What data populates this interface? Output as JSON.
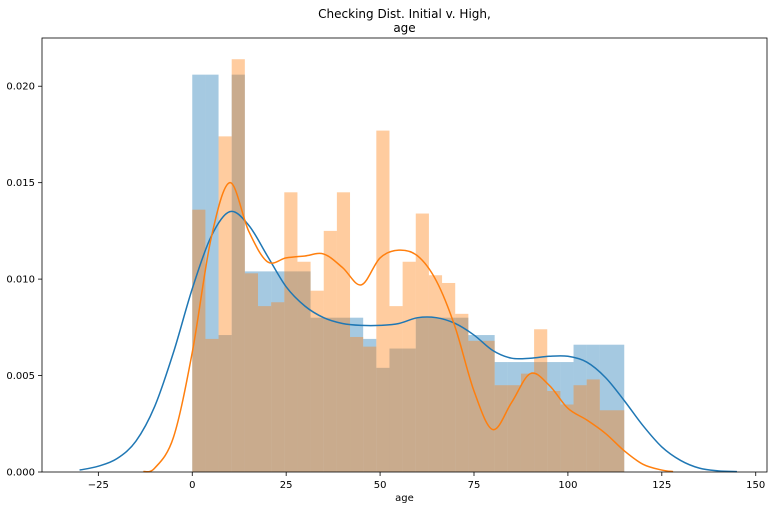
{
  "chart_data": {
    "type": "histogram",
    "title_lines": [
      "Checking Dist. Initial v. High,",
      "age"
    ],
    "xlabel": "age",
    "ylabel": "",
    "xlim": [
      -40,
      153
    ],
    "ylim": [
      0,
      0.0225
    ],
    "x_ticks": [
      -25,
      0,
      25,
      50,
      75,
      100,
      125,
      150
    ],
    "y_ticks": [
      0.0,
      0.005,
      0.01,
      0.015,
      0.02
    ],
    "y_tick_labels": [
      "0.000",
      "0.005",
      "0.010",
      "0.015",
      "0.020"
    ],
    "grid": false,
    "legend": "none",
    "colors": {
      "blue": "#1f77b4",
      "orange": "#ff7f0e",
      "blue_fill": "#1f77b4",
      "orange_fill": "#ff7f0e"
    },
    "series": [
      {
        "color": "blue",
        "bin_edges": [
          0,
          3.5,
          7,
          10.5,
          14,
          17.5,
          21,
          24.5,
          28,
          31.5,
          35,
          38.5,
          42,
          45.5,
          49,
          52.5,
          56,
          59.5,
          63,
          66.5,
          70,
          73.5,
          77,
          80.5,
          84,
          87.5,
          91,
          94.5,
          98,
          101.5,
          105,
          108.5,
          115
        ],
        "heights": [
          0.0206,
          0.0206,
          0.0071,
          0.0206,
          0.0104,
          0.0104,
          0.0104,
          0.0104,
          0.0104,
          0.008,
          0.008,
          0.008,
          0.008,
          0.0069,
          0.0054,
          0.0064,
          0.0064,
          0.008,
          0.008,
          0.008,
          0.008,
          0.0071,
          0.0071,
          0.0057,
          0.0057,
          0.0057,
          0.0057,
          0.0057,
          0.0057,
          0.0066,
          0.0066,
          0.0066,
          0.0066
        ],
        "kde_x": [
          -30,
          -25,
          -20,
          -15,
          -10,
          -5,
          0,
          5,
          10,
          15,
          20,
          25,
          30,
          35,
          40,
          45,
          50,
          55,
          60,
          65,
          70,
          75,
          80,
          85,
          90,
          95,
          100,
          105,
          110,
          115,
          120,
          125,
          130,
          135,
          140,
          145
        ],
        "kde_y": [
          0.0001,
          0.0003,
          0.0007,
          0.0016,
          0.0034,
          0.0062,
          0.0095,
          0.0122,
          0.0135,
          0.0128,
          0.0112,
          0.0096,
          0.0086,
          0.008,
          0.0077,
          0.0076,
          0.0076,
          0.0077,
          0.008,
          0.008,
          0.0077,
          0.0071,
          0.0063,
          0.0059,
          0.0059,
          0.006,
          0.006,
          0.0057,
          0.0049,
          0.0037,
          0.0024,
          0.0013,
          0.0006,
          0.0002,
          6e-05,
          2e-05
        ]
      },
      {
        "color": "orange",
        "bin_edges": [
          0,
          3.5,
          7,
          10.5,
          14,
          17.5,
          21,
          24.5,
          28,
          31.5,
          35,
          38.5,
          42,
          45.5,
          49,
          52.5,
          56,
          59.5,
          63,
          66.5,
          70,
          73.5,
          77,
          80.5,
          84,
          87.5,
          91,
          94.5,
          98,
          101.5,
          105,
          108.5,
          115
        ],
        "heights": [
          0.0136,
          0.0069,
          0.0174,
          0.0214,
          0.0103,
          0.0086,
          0.0088,
          0.0145,
          0.0109,
          0.0094,
          0.0125,
          0.0145,
          0.007,
          0.0065,
          0.0177,
          0.0086,
          0.0109,
          0.0134,
          0.0102,
          0.0098,
          0.0082,
          0.0068,
          0.0068,
          0.0045,
          0.0045,
          0.0051,
          0.0074,
          0.0042,
          0.0035,
          0.0045,
          0.0048,
          0.0032,
          0.0026
        ],
        "kde_x": [
          -13,
          -10,
          -5,
          0,
          5,
          10,
          15,
          20,
          25,
          30,
          35,
          40,
          45,
          50,
          55,
          60,
          65,
          70,
          75,
          80,
          85,
          90,
          95,
          100,
          105,
          110,
          115,
          120,
          125,
          128
        ],
        "kde_y": [
          2e-05,
          0.0002,
          0.0018,
          0.0062,
          0.0121,
          0.015,
          0.0125,
          0.0109,
          0.0111,
          0.0112,
          0.0113,
          0.0106,
          0.0097,
          0.0111,
          0.0115,
          0.0112,
          0.0099,
          0.0075,
          0.0042,
          0.0022,
          0.0036,
          0.0051,
          0.0045,
          0.0033,
          0.0027,
          0.002,
          0.0011,
          0.0004,
          0.0001,
          2e-05
        ]
      }
    ]
  }
}
